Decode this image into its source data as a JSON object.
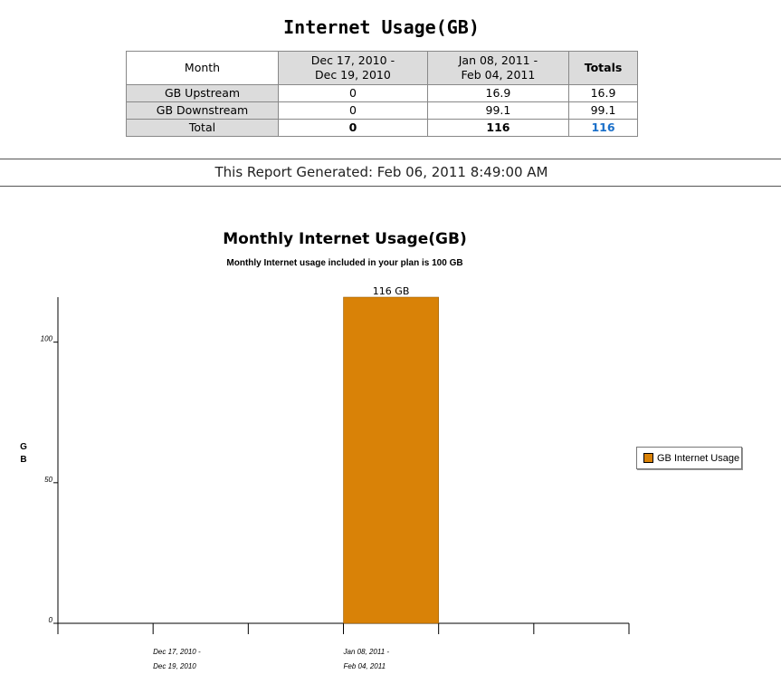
{
  "report": {
    "title": "Internet Usage(GB)",
    "generated": "This Report Generated: Feb 06, 2011 8:49:00 AM"
  },
  "table": {
    "month_header": "Month",
    "periods": [
      "Dec 17, 2010 -\nDec 19, 2010",
      "Jan 08, 2011 -\nFeb 04, 2011"
    ],
    "totals_header": "Totals",
    "rows": [
      {
        "label": "GB Upstream",
        "values": [
          "0",
          "16.9"
        ],
        "total": "16.9"
      },
      {
        "label": "GB Downstream",
        "values": [
          "0",
          "99.1"
        ],
        "total": "99.1"
      },
      {
        "label": "Total",
        "values": [
          "0",
          "116"
        ],
        "total": "116"
      }
    ]
  },
  "chart_data": {
    "type": "bar",
    "title": "Monthly Internet Usage(GB)",
    "subtitle": "Monthly Internet usage included in your plan is 100 GB",
    "ylabel": "G B",
    "xlabel": "",
    "categories": [
      "Dec 17, 2010 - Dec 19, 2010",
      "Jan 08, 2011 - Feb 04, 2011"
    ],
    "category_lines": [
      [
        "Dec 17, 2010 -",
        "Dec 19, 2010"
      ],
      [
        "Jan 08, 2011 -",
        "Feb 04, 2011"
      ]
    ],
    "series": [
      {
        "name": "GB Internet Usage",
        "values": [
          0,
          116
        ],
        "data_labels": [
          "",
          "116 GB"
        ]
      }
    ],
    "yticks": [
      0,
      50,
      100
    ],
    "ylim": [
      0,
      116
    ],
    "grid": false,
    "legend_position": "right",
    "bar_color": "#d98207"
  }
}
